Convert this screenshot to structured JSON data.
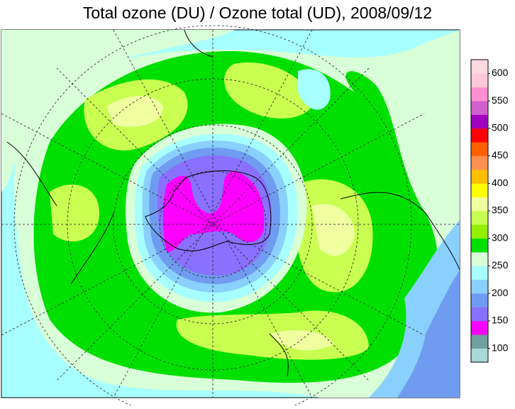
{
  "chart_data": {
    "type": "colorbar",
    "title": "Total ozone (DU) / Ozone total (UD), 2008/09/12",
    "colors": [
      "#a8d8d8",
      "#70a0a0",
      "#ff00ff",
      "#8a70ff",
      "#6f9cf0",
      "#8ad0ff",
      "#a8ffff",
      "#d8ffd8",
      "#00e000",
      "#90f000",
      "#c8ff50",
      "#f0ffa0",
      "#ffff00",
      "#ffc000",
      "#ff9050",
      "#ff6000",
      "#ff0000",
      "#a000c0",
      "#d060d0",
      "#ff90d0",
      "#ffc8d8",
      "#ffd8e0"
    ],
    "ylim": [
      75,
      625
    ],
    "yticks": [
      100,
      150,
      200,
      250,
      300,
      350,
      400,
      450,
      500,
      550,
      600
    ]
  }
}
